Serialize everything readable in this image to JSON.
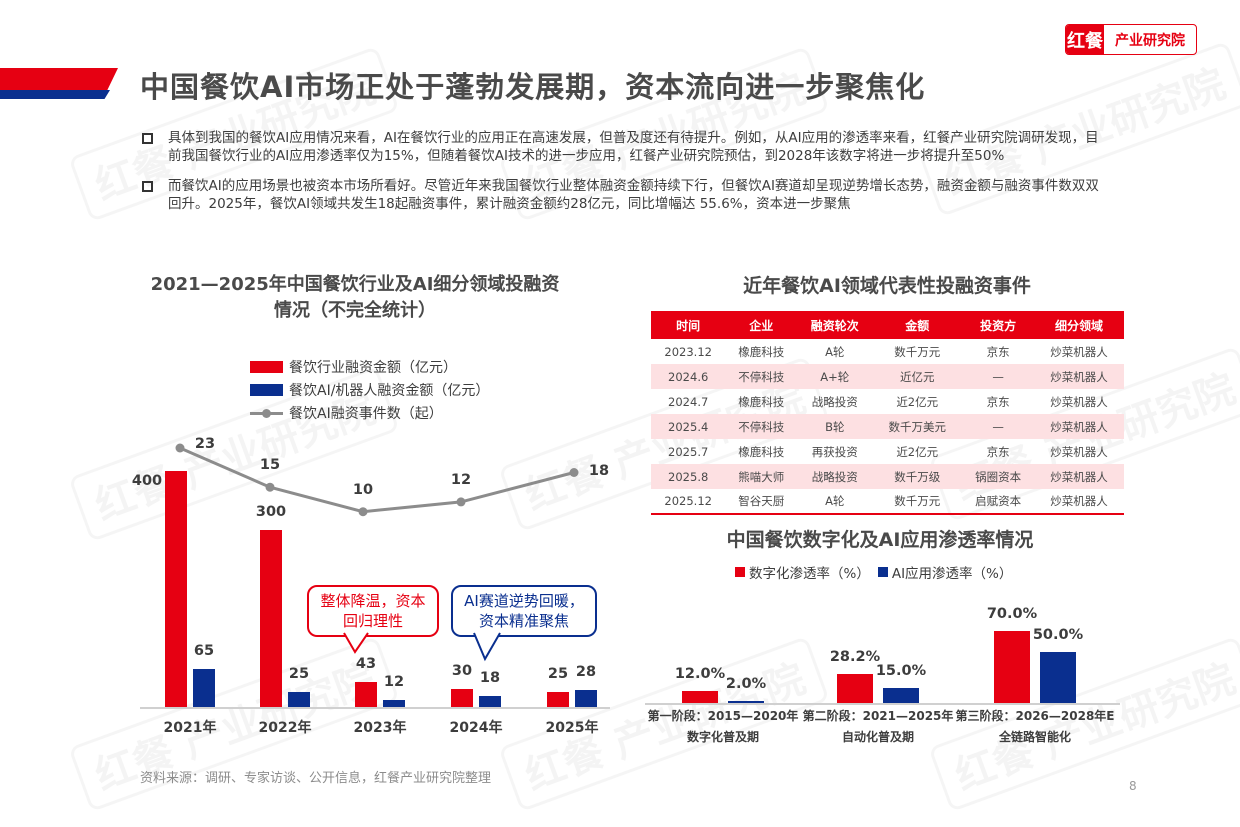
{
  "header": {
    "title": "中国餐饮AI市场正处于蓬勃发展期，资本流向进一步聚焦化",
    "logo": {
      "brand": "红餐",
      "text": "产业研究院"
    },
    "colors": {
      "red": "#e60012",
      "blue": "#0a2f8f",
      "gray": "#8c8c8c"
    }
  },
  "bullets": [
    {
      "text": "具体到我国的餐饮AI应用情况来看，AI在餐饮行业的应用正在高速发展，但普及度还有待提升。例如，从AI应用的渗透率来看，红餐产业研究院调研发现，目前我国餐饮行业的AI应用渗透率仅为15%，但随着餐饮AI技术的进一步应用，红餐产业研究院预估，到2028年该数字将进一步将提升至50%"
    },
    {
      "text": "而餐饮AI的应用场景也被资本市场所看好。尽管近年来我国餐饮行业整体融资金额持续下行，但餐饮AI赛道却呈现逆势增长态势，融资金额与融资事件数双双回升。2025年，餐饮AI领域共发生18起融资事件，累计融资金额约28亿元，同比增幅达 55.6%，资本进一步聚焦"
    }
  ],
  "left_chart": {
    "title": "2021—2025年中国餐饮行业及AI细分领域投融资情况（不完全统计）",
    "legend": [
      "餐饮行业融资金额（亿元）",
      "餐饮AI/机器人融资金额（亿元）",
      "餐饮AI融资事件数（起）"
    ],
    "callouts": [
      {
        "text": "整体降温，资本回归理性"
      },
      {
        "text": "AI赛道逆势回暖，资本精准聚焦"
      }
    ],
    "source": "资料来源：调研、专家访谈、公开信息，红餐产业研究院整理"
  },
  "table": {
    "title": "近年餐饮AI领域代表性投融资事件",
    "headers": [
      "时间",
      "企业",
      "融资轮次",
      "金额",
      "投资方",
      "细分领域"
    ],
    "rows": [
      [
        "2023.12",
        "橡鹿科技",
        "A轮",
        "数千万元",
        "京东",
        "炒菜机器人"
      ],
      [
        "2024.6",
        "不停科技",
        "A+轮",
        "近亿元",
        "—",
        "炒菜机器人"
      ],
      [
        "2024.7",
        "橡鹿科技",
        "战略投资",
        "近2亿元",
        "京东",
        "炒菜机器人"
      ],
      [
        "2025.4",
        "不停科技",
        "B轮",
        "数千万美元",
        "—",
        "炒菜机器人"
      ],
      [
        "2025.7",
        "橡鹿科技",
        "再获投资",
        "近2亿元",
        "京东",
        "炒菜机器人"
      ],
      [
        "2025.8",
        "熊喵大师",
        "战略投资",
        "数千万级",
        "锅圈资本",
        "炒菜机器人"
      ],
      [
        "2025.12",
        "智谷天厨",
        "A轮",
        "数千万元",
        "启赋资本",
        "炒菜机器人"
      ]
    ]
  },
  "right_chart": {
    "title": "中国餐饮数字化及AI应用渗透率情况",
    "legend": [
      "数字化渗透率（%）",
      "AI应用渗透率（%）"
    ]
  },
  "page_number": "8",
  "chart_data": [
    {
      "type": "bar",
      "title": "2021—2025年中国餐饮行业及AI细分领域投融资情况（不完全统计）",
      "categories": [
        "2021年",
        "2022年",
        "2023年",
        "2024年",
        "2025年"
      ],
      "series": [
        {
          "name": "餐饮行业融资金额（亿元）",
          "type": "bar",
          "color": "#e60012",
          "values": [
            400,
            300,
            43,
            30,
            25
          ]
        },
        {
          "name": "餐饮AI/机器人融资金额（亿元）",
          "type": "bar",
          "color": "#0a2f8f",
          "values": [
            65,
            25,
            12,
            18,
            28
          ]
        },
        {
          "name": "餐饮AI融资事件数（起）",
          "type": "line",
          "color": "#8c8c8c",
          "values": [
            23,
            15,
            10,
            12,
            18
          ]
        }
      ],
      "xlabel": "",
      "ylabel": "",
      "legend_position": "top",
      "grid": false,
      "annotations": [
        "整体降温，资本回归理性",
        "AI赛道逆势回暖，资本精准聚焦"
      ]
    },
    {
      "type": "bar",
      "title": "中国餐饮数字化及AI应用渗透率情况",
      "categories": [
        "第一阶段：2015—2020年 数字化普及期",
        "第二阶段：2021—2025年 自动化普及期",
        "第三阶段：2026—2028年E 全链路智能化"
      ],
      "series": [
        {
          "name": "数字化渗透率（%）",
          "color": "#e60012",
          "values": [
            12.0,
            28.2,
            70.0
          ]
        },
        {
          "name": "AI应用渗透率（%）",
          "color": "#0a2f8f",
          "values": [
            2.0,
            15.0,
            50.0
          ]
        }
      ],
      "xlabel": "",
      "ylabel": "",
      "legend_position": "top",
      "grid": false
    }
  ]
}
